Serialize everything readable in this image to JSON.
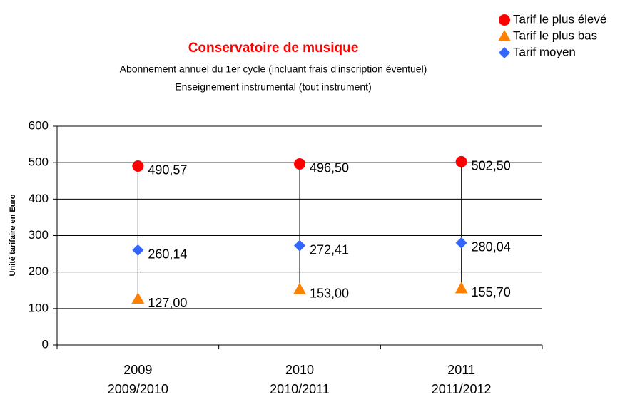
{
  "chart_data": {
    "type": "high-low",
    "title": "Conservatoire de musique",
    "subtitle": [
      "Abonnement annuel du 1er cycle (incluant frais d'inscription éventuel)",
      "Enseignement instrumental (tout instrument)"
    ],
    "y_label": "Unité tarifaire en Euro",
    "categories": [
      "2009",
      "2010",
      "2011"
    ],
    "category_sublabels": [
      "2009/2010",
      "2010/2011",
      "2011/2012"
    ],
    "series": [
      {
        "name": "Tarif le plus élevé",
        "color": "#ff0000",
        "marker": "circle",
        "values": [
          490.57,
          496.5,
          502.5
        ],
        "value_labels": [
          "490,57",
          "496,50",
          "502,50"
        ]
      },
      {
        "name": "Tarif le plus bas",
        "color": "#ff8000",
        "marker": "triangle",
        "values": [
          127,
          153,
          155.7
        ],
        "value_labels": [
          "127,00",
          "153,00",
          "155,70"
        ]
      },
      {
        "name": "Tarif moyen",
        "color": "#3366ff",
        "marker": "diamond",
        "values": [
          260.14,
          272.41,
          280.04
        ],
        "value_labels": [
          "260,14",
          "272,41",
          "280,04"
        ]
      }
    ],
    "ylim": [
      0,
      600
    ],
    "yticks": [
      0,
      100,
      200,
      300,
      400,
      500,
      600
    ],
    "grid": true,
    "legend": "top-right"
  }
}
